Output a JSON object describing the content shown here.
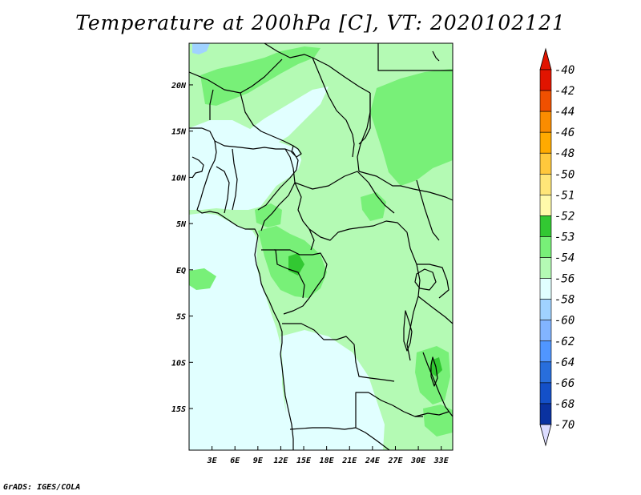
{
  "title": "Temperature at 200hPa [C], VT: 2020102121",
  "footer": "GrADS: IGES/COLA",
  "map": {
    "lon_range": [
      0,
      34.5
    ],
    "lat_range": [
      -19.5,
      24.5
    ],
    "x_ticks": [
      {
        "lon": 3,
        "label": "3E"
      },
      {
        "lon": 6,
        "label": "6E"
      },
      {
        "lon": 9,
        "label": "9E"
      },
      {
        "lon": 12,
        "label": "12E"
      },
      {
        "lon": 15,
        "label": "15E"
      },
      {
        "lon": 18,
        "label": "18E"
      },
      {
        "lon": 21,
        "label": "21E"
      },
      {
        "lon": 24,
        "label": "24E"
      },
      {
        "lon": 27,
        "label": "27E"
      },
      {
        "lon": 30,
        "label": "30E"
      },
      {
        "lon": 33,
        "label": "33E"
      }
    ],
    "y_ticks": [
      {
        "lat": 20,
        "label": "20N"
      },
      {
        "lat": 15,
        "label": "15N"
      },
      {
        "lat": 10,
        "label": "10N"
      },
      {
        "lat": 5,
        "label": "5N"
      },
      {
        "lat": 0,
        "label": "EQ"
      },
      {
        "lat": -5,
        "label": "5S"
      },
      {
        "lat": -10,
        "label": "10S"
      },
      {
        "lat": -15,
        "label": "15S"
      }
    ],
    "fill_colors": {
      "-51": "#32c832",
      "-52": "#78f078",
      "-53": "#b4fab4",
      "-54": "#e1ffff",
      "-56": "#a0d2ff"
    }
  },
  "colorbar": {
    "labels": [
      "-40",
      "-42",
      "-44",
      "-46",
      "-48",
      "-50",
      "-51",
      "-52",
      "-53",
      "-54",
      "-56",
      "-58",
      "-60",
      "-62",
      "-64",
      "-66",
      "-68",
      "-70"
    ],
    "colors": [
      "#e11400",
      "#f05000",
      "#fa8c00",
      "#ffaa00",
      "#ffc83c",
      "#ffe678",
      "#fffaaa",
      "#32c832",
      "#78f078",
      "#b4fab4",
      "#e1ffff",
      "#a0d2ff",
      "#82b4ff",
      "#5096ff",
      "#286edc",
      "#1450c8",
      "#0a32a0",
      "#00146e"
    ],
    "top_color": "#e11400",
    "bottom_color": "#dcdcff"
  }
}
